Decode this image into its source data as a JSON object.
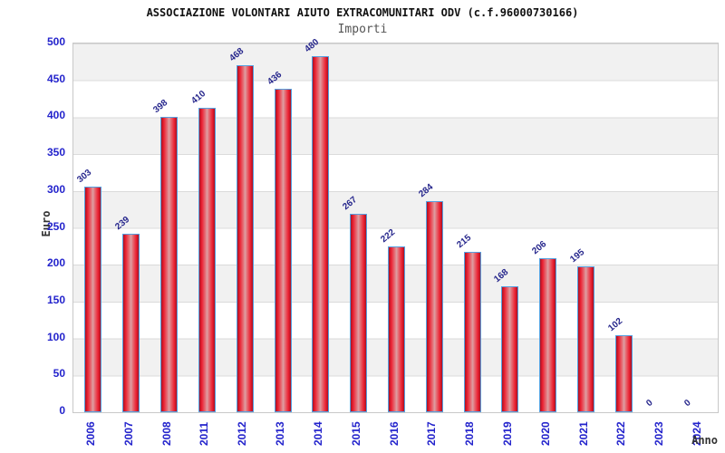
{
  "chart_data": {
    "type": "bar",
    "title": "ASSOCIAZIONE VOLONTARI AIUTO EXTRACOMUNITARI ODV (c.f.96000730166)",
    "subtitle": "Importi",
    "xlabel": "Anno",
    "ylabel": "Euro",
    "categories": [
      "2006",
      "2007",
      "2008",
      "2011",
      "2012",
      "2013",
      "2014",
      "2015",
      "2016",
      "2017",
      "2018",
      "2019",
      "2020",
      "2021",
      "2022",
      "2023",
      "2024"
    ],
    "values": [
      303,
      239,
      398,
      410,
      468,
      436,
      480,
      267,
      222,
      284,
      215,
      168,
      206,
      195,
      102,
      0,
      0
    ],
    "ylim": [
      0,
      500
    ],
    "ytick_step": 50,
    "legend": "none",
    "grid": "horizontal-bands-alternating-gray-white",
    "colors": {
      "bar_edge": "#a81222",
      "bar_bright": "#ec2132",
      "bar_center": "#dda0a4",
      "bar_border": "#55a0e0",
      "axis_text": "#2323cc",
      "value_label": "#26268c",
      "band_gray": "#f1f1f1",
      "band_white": "#ffffff",
      "title_color": "#111111",
      "subtitle_color": "#555555",
      "axis_title_color": "#333333"
    }
  }
}
